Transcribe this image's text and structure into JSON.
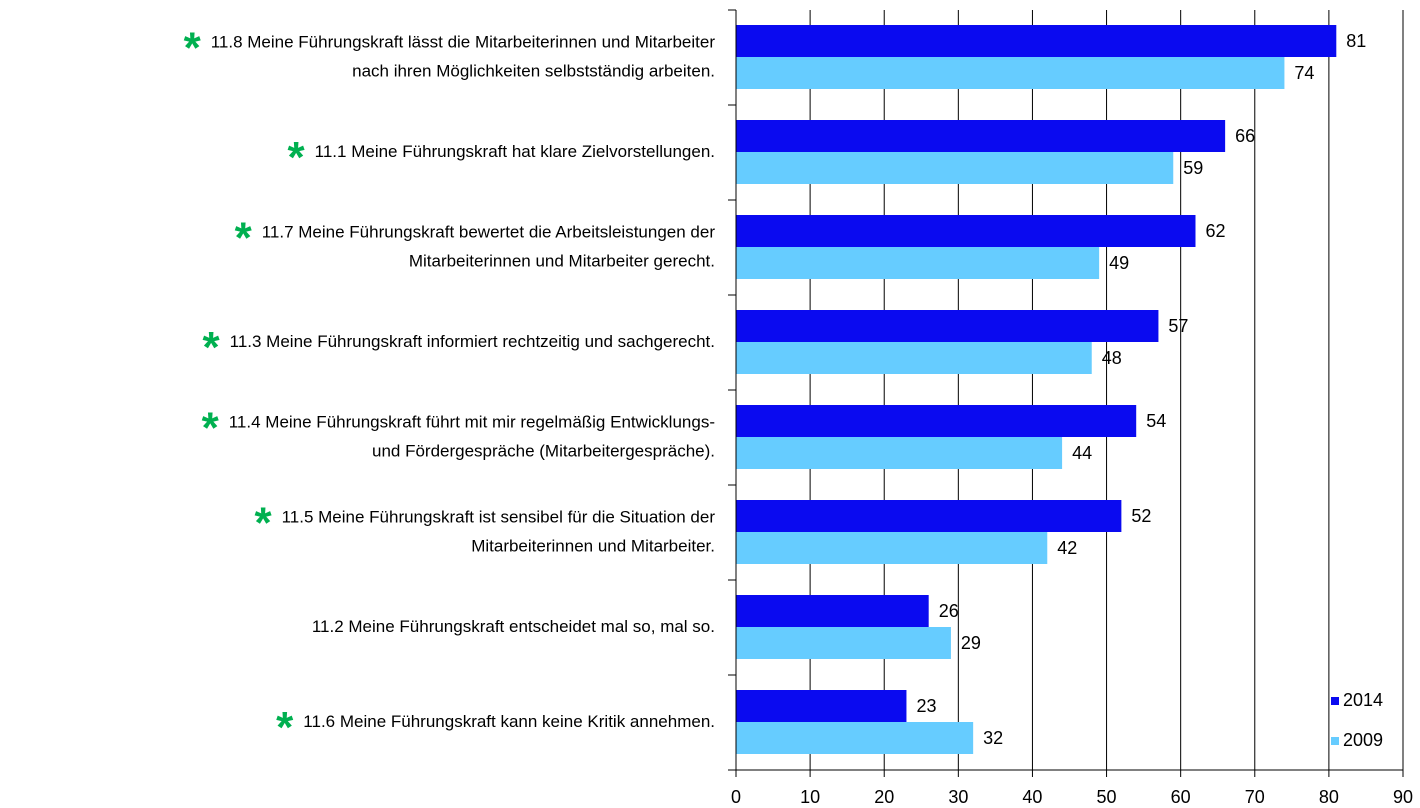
{
  "chart_data": {
    "type": "bar",
    "orientation": "horizontal",
    "categories": [
      [
        "11.8 Meine Führungskraft lässt die Mitarbeiterinnen und Mitarbeiter",
        "nach ihren Möglichkeiten selbstständig arbeiten."
      ],
      [
        "11.1 Meine Führungskraft hat klare Zielvorstellungen."
      ],
      [
        "11.7 Meine Führungskraft bewertet die Arbeitsleistungen der",
        "Mitarbeiterinnen und Mitarbeiter gerecht."
      ],
      [
        "11.3 Meine Führungskraft informiert rechtzeitig und sachgerecht."
      ],
      [
        "11.4 Meine Führungskraft führt mit mir regelmäßig Entwicklungs-",
        "und Fördergespräche (Mitarbeitergespräche)."
      ],
      [
        "11.5 Meine Führungskraft ist sensibel für die Situation der",
        "Mitarbeiterinnen und Mitarbeiter."
      ],
      [
        "11.2 Meine Führungskraft entscheidet mal so, mal so."
      ],
      [
        "11.6 Meine Führungskraft kann keine Kritik annehmen."
      ]
    ],
    "markers": [
      "*",
      "*",
      "*",
      "*",
      "*",
      "*",
      null,
      "*"
    ],
    "marker_color": "#00b050",
    "series": [
      {
        "name": "2014",
        "color": "#0a0af0",
        "values": [
          81,
          66,
          62,
          57,
          54,
          52,
          26,
          23
        ]
      },
      {
        "name": "2009",
        "color": "#66ccff",
        "values": [
          74,
          59,
          49,
          48,
          44,
          42,
          29,
          32
        ]
      }
    ],
    "xlim": [
      0,
      90
    ],
    "xticks": [
      0,
      10,
      20,
      30,
      40,
      50,
      60,
      70,
      80,
      90
    ],
    "grid": true,
    "legend": "bottom-right"
  }
}
